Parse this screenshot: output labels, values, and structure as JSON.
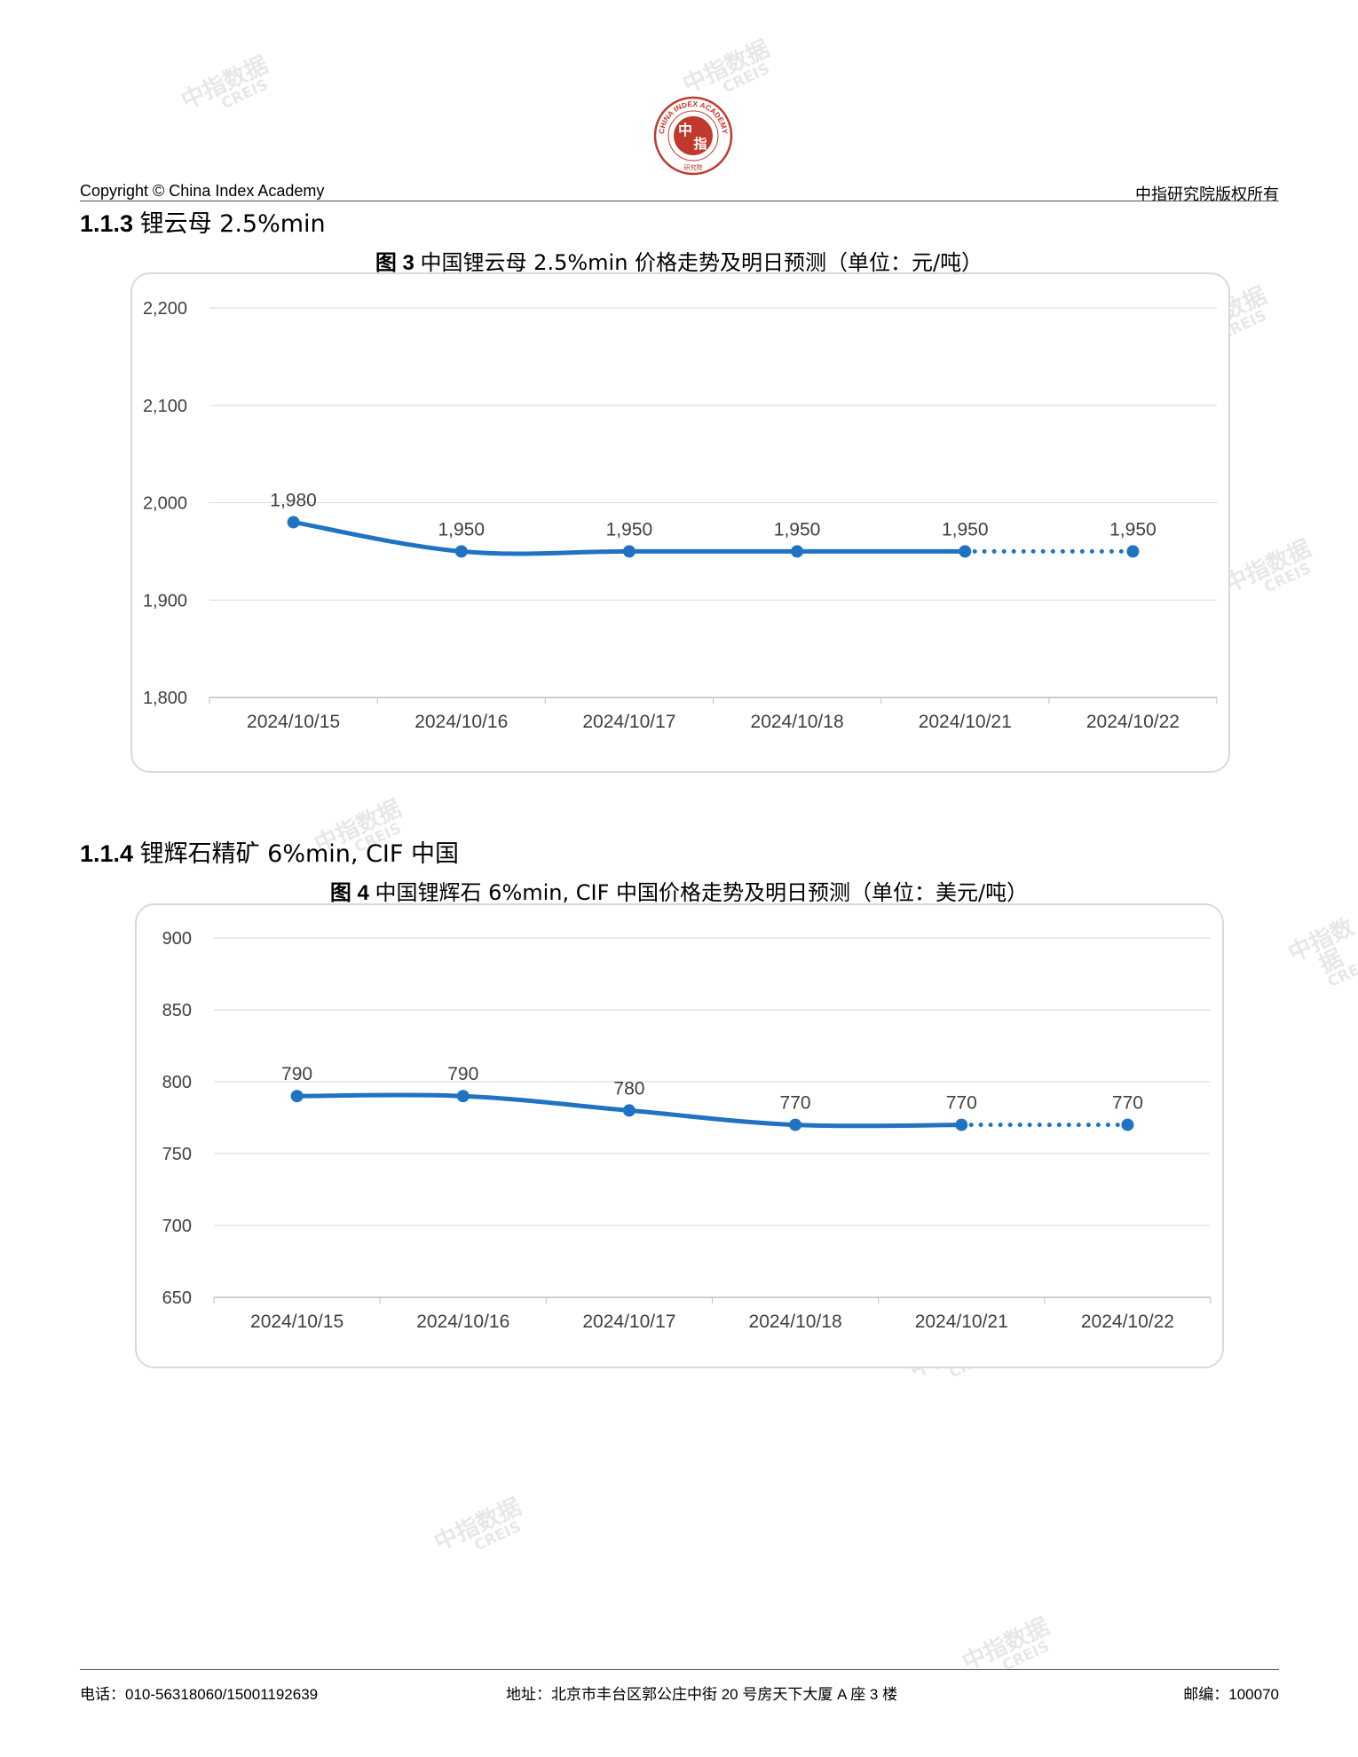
{
  "header": {
    "copyright": "Copyright © China Index Academy",
    "rights": "中指研究院版权所有",
    "logo": {
      "ring_text": "CHINA INDEX ACADEMY",
      "center_top": "中",
      "center_bottom": "指",
      "bottom_text": "研究院",
      "color": "#c0392b"
    }
  },
  "watermark": {
    "cn": "中指数据",
    "en": "CREIS"
  },
  "sections": [
    {
      "number": "1.1.3",
      "name": "锂云母 2.5%min",
      "figure": {
        "prefix": "图 3",
        "title": "中国锂云母 2.5%min 价格走势及明日预测（单位：元/吨）"
      }
    },
    {
      "number": "1.1.4",
      "name": "锂辉石精矿 6%min, CIF 中国",
      "figure": {
        "prefix": "图 4",
        "title": "中国锂辉石 6%min, CIF 中国价格走势及明日预测（单位：美元/吨）"
      }
    }
  ],
  "chart_data": [
    {
      "type": "line",
      "categories": [
        "2024/10/15",
        "2024/10/16",
        "2024/10/17",
        "2024/10/18",
        "2024/10/21",
        "2024/10/22"
      ],
      "values": [
        1980,
        1950,
        1950,
        1950,
        1950,
        1950
      ],
      "data_labels": [
        "1,980",
        "1,950",
        "1,950",
        "1,950",
        "1,950",
        "1,950"
      ],
      "forecast_from_index": 4,
      "ylim": [
        1800,
        2200
      ],
      "yticks": [
        1800,
        1900,
        2000,
        2100,
        2200
      ],
      "ytick_labels": [
        "1,800",
        "1,900",
        "2,000",
        "2,100",
        "2,200"
      ],
      "grid": true,
      "legend": "none",
      "color": "#1f73c2"
    },
    {
      "type": "line",
      "categories": [
        "2024/10/15",
        "2024/10/16",
        "2024/10/17",
        "2024/10/18",
        "2024/10/21",
        "2024/10/22"
      ],
      "values": [
        790,
        790,
        780,
        770,
        770,
        770
      ],
      "data_labels": [
        "790",
        "790",
        "780",
        "770",
        "770",
        "770"
      ],
      "forecast_from_index": 4,
      "ylim": [
        650,
        900
      ],
      "yticks": [
        650,
        700,
        750,
        800,
        850,
        900
      ],
      "ytick_labels": [
        "650",
        "700",
        "750",
        "800",
        "850",
        "900"
      ],
      "grid": true,
      "legend": "none",
      "color": "#1f73c2"
    }
  ],
  "footer": {
    "phone": "电话：010-56318060/15001192639",
    "address": "地址：北京市丰台区郭公庄中街 20 号房天下大厦 A 座 3 楼",
    "postcode": "邮编：100070"
  }
}
